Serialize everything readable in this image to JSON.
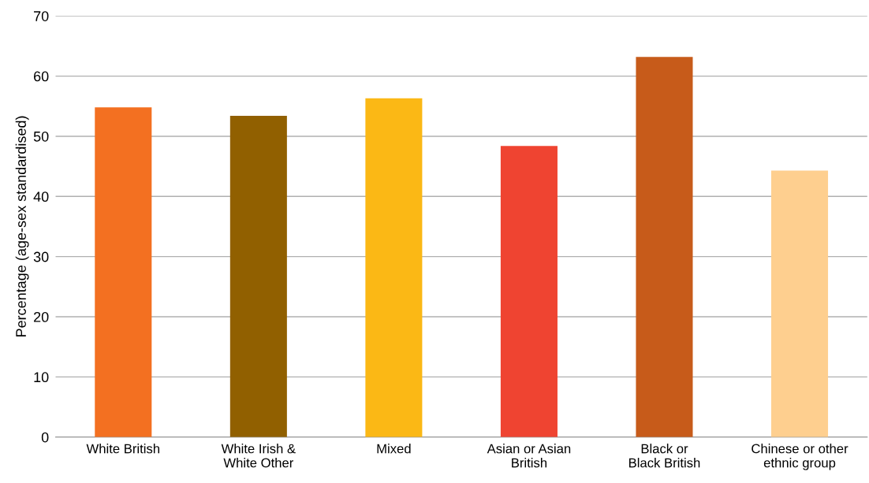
{
  "chart_data": {
    "type": "bar",
    "ylabel": "Percentage (age-sex standardised)",
    "categories": [
      "White British",
      "White Irish &\nWhite Other",
      "Mixed",
      "Asian or Asian\nBritish",
      "Black or\nBlack British",
      "Chinese or other\nethnic group"
    ],
    "values": [
      54.8,
      53.4,
      56.3,
      48.4,
      63.2,
      44.3
    ],
    "colors": [
      "#f37021",
      "#916000",
      "#fbb815",
      "#ef4431",
      "#c75b1a",
      "#fecf8f"
    ],
    "ylim": [
      0,
      70
    ],
    "yticks": [
      0,
      10,
      20,
      30,
      40,
      50,
      60,
      70
    ],
    "grid": "y"
  }
}
